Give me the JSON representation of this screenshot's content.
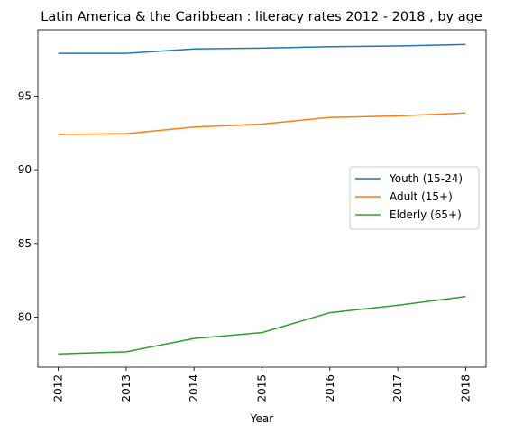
{
  "chart_data": {
    "type": "line",
    "title": "Latin America & the Caribbean : literacy rates 2012 - 2018 , by age",
    "xlabel": "Year",
    "ylabel": "",
    "x": [
      "2012",
      "2013",
      "2014",
      "2015",
      "2016",
      "2017",
      "2018"
    ],
    "xlim": [
      2011.7,
      2018.3
    ],
    "ylim": [
      76.6,
      99.5
    ],
    "yticks": [
      80,
      85,
      90,
      95
    ],
    "grid": false,
    "legend_position": "center-right",
    "series": [
      {
        "name": "Youth (15-24)",
        "color": "#1f77b4",
        "values": [
          97.9,
          97.9,
          98.2,
          98.25,
          98.35,
          98.4,
          98.5
        ]
      },
      {
        "name": "Adult (15+)",
        "color": "#ff7f0e",
        "values": [
          92.4,
          92.45,
          92.9,
          93.1,
          93.55,
          93.65,
          93.85
        ]
      },
      {
        "name": "Elderly (65+)",
        "color": "#2ca02c",
        "values": [
          77.5,
          77.65,
          78.55,
          78.95,
          80.3,
          80.8,
          81.4
        ]
      }
    ]
  }
}
